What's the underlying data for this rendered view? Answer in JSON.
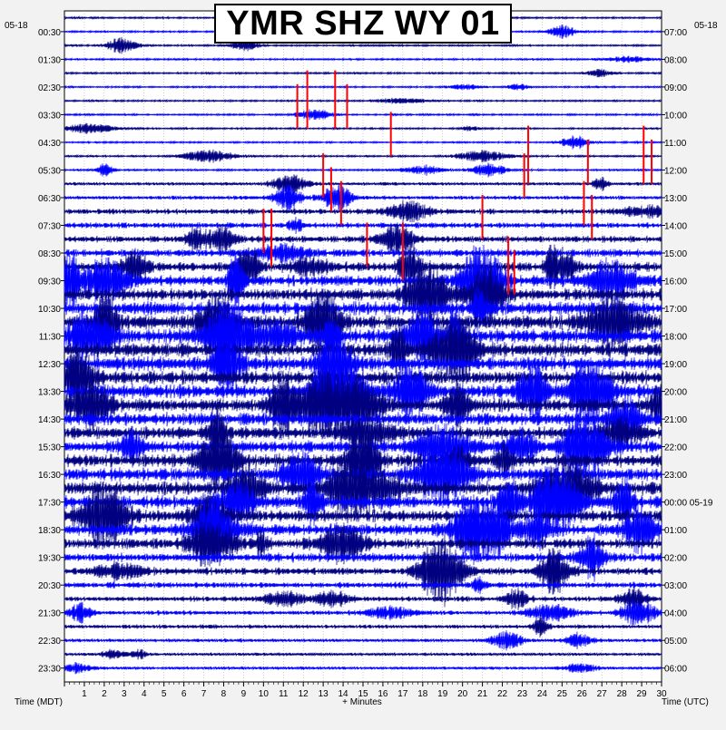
{
  "chart_data": {
    "type": "line",
    "title": "YMR SHZ WY 01",
    "left_date_label": "05-18",
    "right_date_label": "05-18",
    "left_axis_label": "Time (MDT)",
    "right_axis_label": "Time (UTC)",
    "x_axis_label": "+ Minutes",
    "x_ticks": [
      1,
      2,
      3,
      4,
      5,
      6,
      7,
      8,
      9,
      10,
      11,
      12,
      13,
      14,
      15,
      16,
      17,
      18,
      19,
      20,
      21,
      22,
      23,
      24,
      25,
      26,
      27,
      28,
      29,
      30
    ],
    "x_range": [
      0,
      30
    ],
    "left_time_labels": [
      "00:30",
      "01:30",
      "02:30",
      "03:30",
      "04:30",
      "05:30",
      "06:30",
      "07:30",
      "08:30",
      "09:30",
      "10:30",
      "11:30",
      "12:30",
      "13:30",
      "14:30",
      "15:30",
      "16:30",
      "17:30",
      "18:30",
      "19:30",
      "20:30",
      "21:30",
      "22:30",
      "23:30"
    ],
    "right_time_labels": [
      "07:00",
      "08:00",
      "09:00",
      "10:00",
      "11:00",
      "12:00",
      "13:00",
      "14:00",
      "15:00",
      "16:00",
      "17:00",
      "18:00",
      "19:00",
      "20:00",
      "21:00",
      "22:00",
      "23:00",
      "00:00 05-19",
      "01:00",
      "02:00",
      "03:00",
      "04:00",
      "05:00",
      "06:00"
    ],
    "trace_count": 48,
    "trace_colors": [
      "#000080",
      "#0000ff"
    ],
    "clip_color": "#ff0000",
    "grid": true,
    "trace_amplitude_levels": [
      1,
      1,
      1,
      1,
      1,
      1,
      1,
      1,
      1,
      1,
      1,
      2,
      6,
      10,
      16,
      18,
      22,
      28,
      36,
      44,
      48,
      52,
      56,
      56,
      58,
      58,
      56,
      54,
      52,
      50,
      50,
      48,
      50,
      52,
      54,
      52,
      48,
      44,
      40,
      34,
      26,
      20,
      16,
      12,
      10,
      8,
      6,
      5
    ]
  }
}
